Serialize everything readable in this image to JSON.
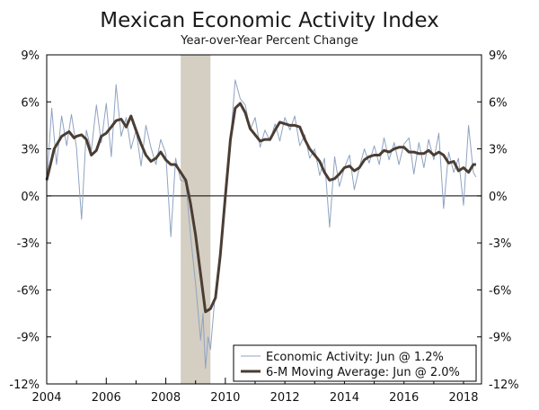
{
  "chart_data": {
    "type": "line",
    "title": "Mexican Economic Activity Index",
    "subtitle": "Year-over-Year Percent Change",
    "xlabel": "",
    "ylabel": "",
    "xlim": [
      2004,
      2018.75
    ],
    "ylim": [
      -12,
      9
    ],
    "x_ticks": [
      2004,
      2006,
      2008,
      2010,
      2012,
      2014,
      2016,
      2018
    ],
    "x_tick_labels": [
      "2004",
      "2006",
      "2008",
      "2010",
      "2012",
      "2014",
      "2016",
      "2018"
    ],
    "y_ticks": [
      9,
      6,
      3,
      0,
      -3,
      -6,
      -9,
      -12
    ],
    "y_tick_labels": [
      "9%",
      "6%",
      "3%",
      "0%",
      "-3%",
      "-6%",
      "-9%",
      "-12%"
    ],
    "recession_band": [
      2008.5,
      2009.5
    ],
    "grid": false,
    "legend_placement": "bottom-right",
    "series": [
      {
        "name": "Economic Activity: Jun @ 1.2%",
        "color": "#8fa3c2",
        "style": "thin",
        "points": [
          [
            2004.0,
            0.8
          ],
          [
            2004.17,
            5.6
          ],
          [
            2004.33,
            2.0
          ],
          [
            2004.5,
            5.1
          ],
          [
            2004.67,
            3.2
          ],
          [
            2004.83,
            5.2
          ],
          [
            2005.0,
            3.1
          ],
          [
            2005.17,
            -1.5
          ],
          [
            2005.33,
            4.2
          ],
          [
            2005.5,
            2.9
          ],
          [
            2005.67,
            5.8
          ],
          [
            2005.83,
            3.4
          ],
          [
            2006.0,
            5.9
          ],
          [
            2006.17,
            2.5
          ],
          [
            2006.33,
            7.1
          ],
          [
            2006.5,
            3.8
          ],
          [
            2006.67,
            5.0
          ],
          [
            2006.83,
            3.0
          ],
          [
            2007.0,
            4.2
          ],
          [
            2007.17,
            1.9
          ],
          [
            2007.33,
            4.5
          ],
          [
            2007.5,
            3.1
          ],
          [
            2007.67,
            2.0
          ],
          [
            2007.83,
            3.6
          ],
          [
            2008.0,
            2.7
          ],
          [
            2008.17,
            -2.6
          ],
          [
            2008.33,
            2.4
          ],
          [
            2008.5,
            1.0
          ],
          [
            2008.67,
            0.9
          ],
          [
            2008.83,
            -2.5
          ],
          [
            2009.0,
            -5.6
          ],
          [
            2009.17,
            -9.2
          ],
          [
            2009.25,
            -7.5
          ],
          [
            2009.33,
            -11.0
          ],
          [
            2009.42,
            -9.0
          ],
          [
            2009.5,
            -9.8
          ],
          [
            2009.67,
            -6.0
          ],
          [
            2009.83,
            -3.5
          ],
          [
            2010.0,
            -0.6
          ],
          [
            2010.17,
            3.5
          ],
          [
            2010.33,
            7.4
          ],
          [
            2010.5,
            6.2
          ],
          [
            2010.67,
            5.8
          ],
          [
            2010.83,
            4.2
          ],
          [
            2011.0,
            5.0
          ],
          [
            2011.17,
            3.1
          ],
          [
            2011.33,
            4.2
          ],
          [
            2011.5,
            3.5
          ],
          [
            2011.67,
            4.6
          ],
          [
            2011.83,
            3.5
          ],
          [
            2012.0,
            5.0
          ],
          [
            2012.17,
            4.2
          ],
          [
            2012.33,
            5.1
          ],
          [
            2012.5,
            3.2
          ],
          [
            2012.67,
            3.9
          ],
          [
            2012.83,
            2.4
          ],
          [
            2013.0,
            3.0
          ],
          [
            2013.17,
            1.3
          ],
          [
            2013.33,
            2.4
          ],
          [
            2013.5,
            -2.0
          ],
          [
            2013.67,
            2.5
          ],
          [
            2013.83,
            0.6
          ],
          [
            2014.0,
            1.8
          ],
          [
            2014.17,
            2.6
          ],
          [
            2014.33,
            0.4
          ],
          [
            2014.5,
            1.8
          ],
          [
            2014.67,
            3.0
          ],
          [
            2014.83,
            2.1
          ],
          [
            2015.0,
            3.2
          ],
          [
            2015.17,
            2.0
          ],
          [
            2015.33,
            3.7
          ],
          [
            2015.5,
            2.3
          ],
          [
            2015.67,
            3.4
          ],
          [
            2015.83,
            2.0
          ],
          [
            2016.0,
            3.3
          ],
          [
            2016.17,
            3.7
          ],
          [
            2016.33,
            1.4
          ],
          [
            2016.5,
            3.4
          ],
          [
            2016.67,
            1.8
          ],
          [
            2016.83,
            3.6
          ],
          [
            2017.0,
            2.3
          ],
          [
            2017.17,
            4.0
          ],
          [
            2017.33,
            -0.8
          ],
          [
            2017.5,
            2.8
          ],
          [
            2017.67,
            1.5
          ],
          [
            2017.83,
            2.4
          ],
          [
            2018.0,
            -0.6
          ],
          [
            2018.17,
            4.5
          ],
          [
            2018.33,
            1.5
          ],
          [
            2018.42,
            1.2
          ]
        ]
      },
      {
        "name": "6-M Moving Average: Jun @ 2.0%",
        "color": "#4a3d33",
        "style": "thick",
        "points": [
          [
            2004.0,
            1.0
          ],
          [
            2004.25,
            3.0
          ],
          [
            2004.5,
            3.8
          ],
          [
            2004.75,
            4.1
          ],
          [
            2004.92,
            3.7
          ],
          [
            2005.0,
            3.8
          ],
          [
            2005.17,
            3.9
          ],
          [
            2005.33,
            3.6
          ],
          [
            2005.5,
            2.6
          ],
          [
            2005.67,
            2.9
          ],
          [
            2005.83,
            3.8
          ],
          [
            2006.0,
            4.0
          ],
          [
            2006.17,
            4.4
          ],
          [
            2006.33,
            4.8
          ],
          [
            2006.5,
            4.9
          ],
          [
            2006.67,
            4.4
          ],
          [
            2006.83,
            5.1
          ],
          [
            2007.0,
            4.2
          ],
          [
            2007.17,
            3.3
          ],
          [
            2007.33,
            2.6
          ],
          [
            2007.5,
            2.2
          ],
          [
            2007.67,
            2.4
          ],
          [
            2007.83,
            2.8
          ],
          [
            2008.0,
            2.3
          ],
          [
            2008.17,
            2.0
          ],
          [
            2008.33,
            2.0
          ],
          [
            2008.5,
            1.5
          ],
          [
            2008.67,
            1.0
          ],
          [
            2008.83,
            -0.5
          ],
          [
            2009.0,
            -2.5
          ],
          [
            2009.17,
            -5.0
          ],
          [
            2009.33,
            -7.4
          ],
          [
            2009.5,
            -7.2
          ],
          [
            2009.67,
            -6.5
          ],
          [
            2009.83,
            -3.8
          ],
          [
            2010.0,
            0.0
          ],
          [
            2010.17,
            3.6
          ],
          [
            2010.33,
            5.6
          ],
          [
            2010.5,
            5.9
          ],
          [
            2010.67,
            5.3
          ],
          [
            2010.83,
            4.3
          ],
          [
            2011.0,
            3.9
          ],
          [
            2011.17,
            3.5
          ],
          [
            2011.33,
            3.6
          ],
          [
            2011.5,
            3.6
          ],
          [
            2011.67,
            4.2
          ],
          [
            2011.83,
            4.7
          ],
          [
            2012.0,
            4.6
          ],
          [
            2012.17,
            4.5
          ],
          [
            2012.33,
            4.5
          ],
          [
            2012.5,
            4.4
          ],
          [
            2012.67,
            3.6
          ],
          [
            2012.83,
            3.0
          ],
          [
            2013.0,
            2.6
          ],
          [
            2013.17,
            2.2
          ],
          [
            2013.33,
            1.5
          ],
          [
            2013.5,
            1.0
          ],
          [
            2013.67,
            1.1
          ],
          [
            2013.83,
            1.4
          ],
          [
            2014.0,
            1.8
          ],
          [
            2014.17,
            1.9
          ],
          [
            2014.33,
            1.6
          ],
          [
            2014.5,
            1.8
          ],
          [
            2014.67,
            2.3
          ],
          [
            2014.83,
            2.5
          ],
          [
            2015.0,
            2.6
          ],
          [
            2015.17,
            2.6
          ],
          [
            2015.33,
            2.9
          ],
          [
            2015.5,
            2.8
          ],
          [
            2015.67,
            3.0
          ],
          [
            2015.83,
            3.1
          ],
          [
            2016.0,
            3.1
          ],
          [
            2016.17,
            2.8
          ],
          [
            2016.33,
            2.8
          ],
          [
            2016.5,
            2.7
          ],
          [
            2016.67,
            2.7
          ],
          [
            2016.83,
            2.9
          ],
          [
            2017.0,
            2.6
          ],
          [
            2017.17,
            2.8
          ],
          [
            2017.33,
            2.6
          ],
          [
            2017.5,
            2.1
          ],
          [
            2017.67,
            2.2
          ],
          [
            2017.83,
            1.6
          ],
          [
            2018.0,
            1.8
          ],
          [
            2018.17,
            1.5
          ],
          [
            2018.33,
            2.0
          ],
          [
            2018.42,
            2.0
          ]
        ]
      }
    ]
  }
}
